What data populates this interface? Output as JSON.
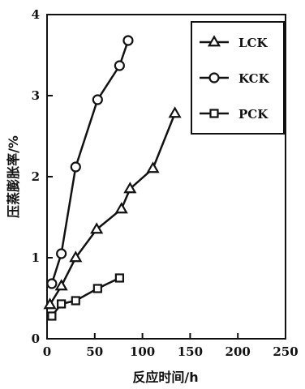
{
  "chart_data": {
    "type": "line",
    "xlabel": "反应时间/h",
    "ylabel": "压蒸膨胀率/%",
    "xlim": [
      0,
      250
    ],
    "ylim": [
      0,
      4
    ],
    "xticks": [
      0,
      50,
      100,
      150,
      200,
      250
    ],
    "yticks": [
      0,
      1,
      2,
      3,
      4
    ],
    "x_tick_labels": [
      "0",
      "50",
      "100",
      "150",
      "200",
      "250"
    ],
    "y_tick_labels": [
      "0",
      "1",
      "2",
      "3",
      "4"
    ],
    "legend_position": "top-right",
    "grid": false,
    "series": [
      {
        "name": "LCK",
        "marker": "triangle",
        "points": [
          [
            3,
            0.42
          ],
          [
            15,
            0.65
          ],
          [
            30,
            1.0
          ],
          [
            52,
            1.35
          ],
          [
            78,
            1.6
          ],
          [
            87,
            1.85
          ],
          [
            111,
            2.1
          ],
          [
            134,
            2.78
          ]
        ]
      },
      {
        "name": "KCK",
        "marker": "circle",
        "points": [
          [
            5,
            0.68
          ],
          [
            15,
            1.05
          ],
          [
            30,
            2.12
          ],
          [
            53,
            2.95
          ],
          [
            76,
            3.37
          ],
          [
            85,
            3.68
          ]
        ]
      },
      {
        "name": "PCK",
        "marker": "square",
        "points": [
          [
            5,
            0.28
          ],
          [
            15,
            0.43
          ],
          [
            30,
            0.47
          ],
          [
            53,
            0.62
          ],
          [
            76,
            0.75
          ]
        ]
      }
    ]
  }
}
